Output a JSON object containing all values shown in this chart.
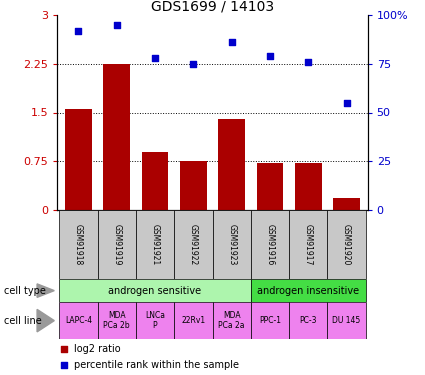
{
  "title": "GDS1699 / 14103",
  "samples": [
    "GSM91918",
    "GSM91919",
    "GSM91921",
    "GSM91922",
    "GSM91923",
    "GSM91916",
    "GSM91917",
    "GSM91920"
  ],
  "log2_ratio": [
    1.55,
    2.25,
    0.9,
    0.75,
    1.4,
    0.72,
    0.72,
    0.18
  ],
  "percentile_rank": [
    92,
    95,
    78,
    75,
    86,
    79,
    76,
    55
  ],
  "cell_type_groups": [
    {
      "label": "androgen sensitive",
      "start": 0,
      "end": 5,
      "color": "#adf5ad"
    },
    {
      "label": "androgen insensitive",
      "start": 5,
      "end": 8,
      "color": "#44dd44"
    }
  ],
  "cell_lines": [
    "LAPC-4",
    "MDA\nPCa 2b",
    "LNCa\nP",
    "22Rv1",
    "MDA\nPCa 2a",
    "PPC-1",
    "PC-3",
    "DU 145"
  ],
  "cell_line_color": "#EE82EE",
  "bar_color": "#AA0000",
  "dot_color": "#0000CC",
  "ylim_left": [
    0,
    3
  ],
  "ylim_right": [
    0,
    100
  ],
  "yticks_left": [
    0,
    0.75,
    1.5,
    2.25,
    3
  ],
  "yticks_right": [
    0,
    25,
    50,
    75,
    100
  ],
  "ytick_labels_left": [
    "0",
    "0.75",
    "1.5",
    "2.25",
    "3"
  ],
  "ytick_labels_right": [
    "0",
    "25",
    "50",
    "75",
    "100%"
  ],
  "hlines": [
    0.75,
    1.5,
    2.25
  ],
  "left_tick_color": "#CC0000",
  "right_tick_color": "#0000CC",
  "sample_box_color": "#C8C8C8",
  "legend_log2": "log2 ratio",
  "legend_percentile": "percentile rank within the sample",
  "cell_type_label": "cell type",
  "cell_line_label": "cell line",
  "bar_width": 0.7
}
